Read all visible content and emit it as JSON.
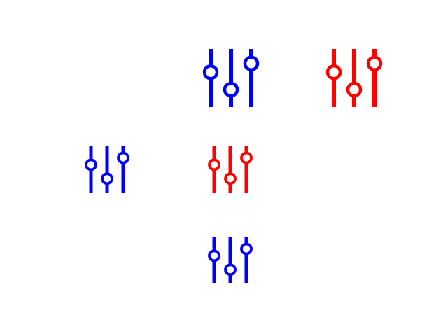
{
  "colors": {
    "background": "#ffffff",
    "blue": "#0000ff",
    "red": "#ff0000"
  },
  "icons": [
    {
      "name": "sliders-icon-large-blue",
      "icon": "equalizer-sliders",
      "color": "blue",
      "knob_levels": [
        0.4,
        0.7,
        0.25
      ]
    },
    {
      "name": "sliders-icon-large-red",
      "icon": "equalizer-sliders",
      "color": "red",
      "knob_levels": [
        0.4,
        0.7,
        0.25
      ]
    },
    {
      "name": "sliders-icon-small-blue-left",
      "icon": "equalizer-sliders",
      "color": "blue",
      "knob_levels": [
        0.4,
        0.7,
        0.25
      ]
    },
    {
      "name": "sliders-icon-small-red-center",
      "icon": "equalizer-sliders",
      "color": "red",
      "knob_levels": [
        0.4,
        0.7,
        0.25
      ]
    },
    {
      "name": "sliders-icon-small-blue-bottom",
      "icon": "equalizer-sliders",
      "color": "blue",
      "knob_levels": [
        0.4,
        0.7,
        0.25
      ]
    }
  ]
}
